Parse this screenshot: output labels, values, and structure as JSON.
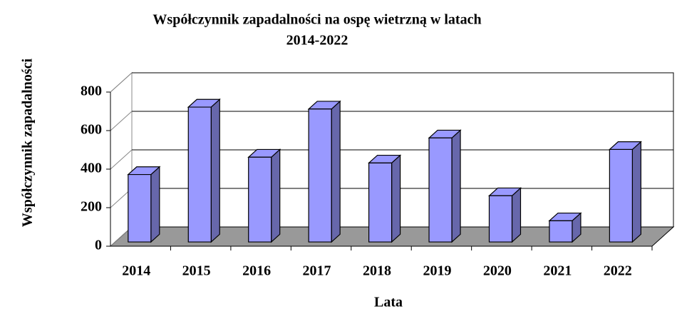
{
  "chart_data": {
    "type": "bar3d",
    "title": "Współczynnik zapadalności na ospę wietrzną w latach",
    "subtitle": "2014-2022",
    "x_label": "Lata",
    "y_label": "Współczynnik zapadalności",
    "categories": [
      "2014",
      "2015",
      "2016",
      "2017",
      "2018",
      "2019",
      "2020",
      "2021",
      "2022"
    ],
    "values": [
      350,
      700,
      440,
      690,
      410,
      540,
      240,
      110,
      480
    ],
    "color": "#9999ff",
    "ylim": [
      0,
      800
    ],
    "yticks": [
      0,
      200,
      400,
      600,
      800
    ],
    "grid": true
  }
}
